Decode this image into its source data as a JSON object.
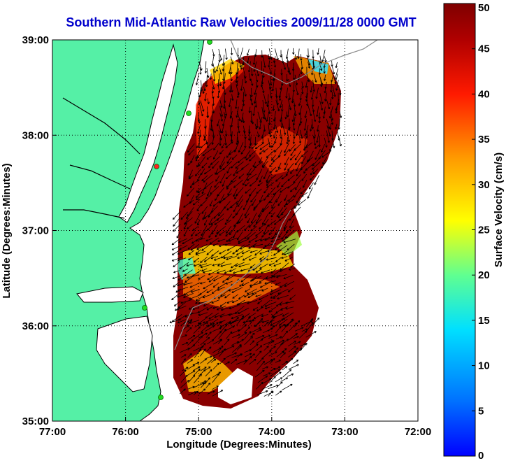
{
  "chart_data": {
    "type": "heatmap",
    "title": "Southern Mid-Atlantic Raw Velocities 2009/11/28 0000 GMT",
    "xlabel": "Longitude (Degrees:Minutes)",
    "ylabel": "Latitude (Degrees:Minutes)",
    "x_ticks": [
      "77:00",
      "76:00",
      "75:00",
      "74:00",
      "73:00",
      "72:00"
    ],
    "y_ticks": [
      "39:00",
      "38:00",
      "37:00",
      "36:00",
      "35:00"
    ],
    "xlim": [
      -77,
      -72
    ],
    "ylim": [
      35,
      39
    ],
    "grid": true,
    "colorbar": {
      "label": "Surface Velocity (cm/s)",
      "min": 0,
      "max": 50,
      "ticks": [
        "0",
        "5",
        "10",
        "15",
        "20",
        "25",
        "30",
        "35",
        "40",
        "45",
        "50"
      ]
    },
    "colors": {
      "land": "#55f0a6",
      "coastline": "#000000",
      "vectors": "#000000",
      "title": "#0000cc"
    }
  }
}
